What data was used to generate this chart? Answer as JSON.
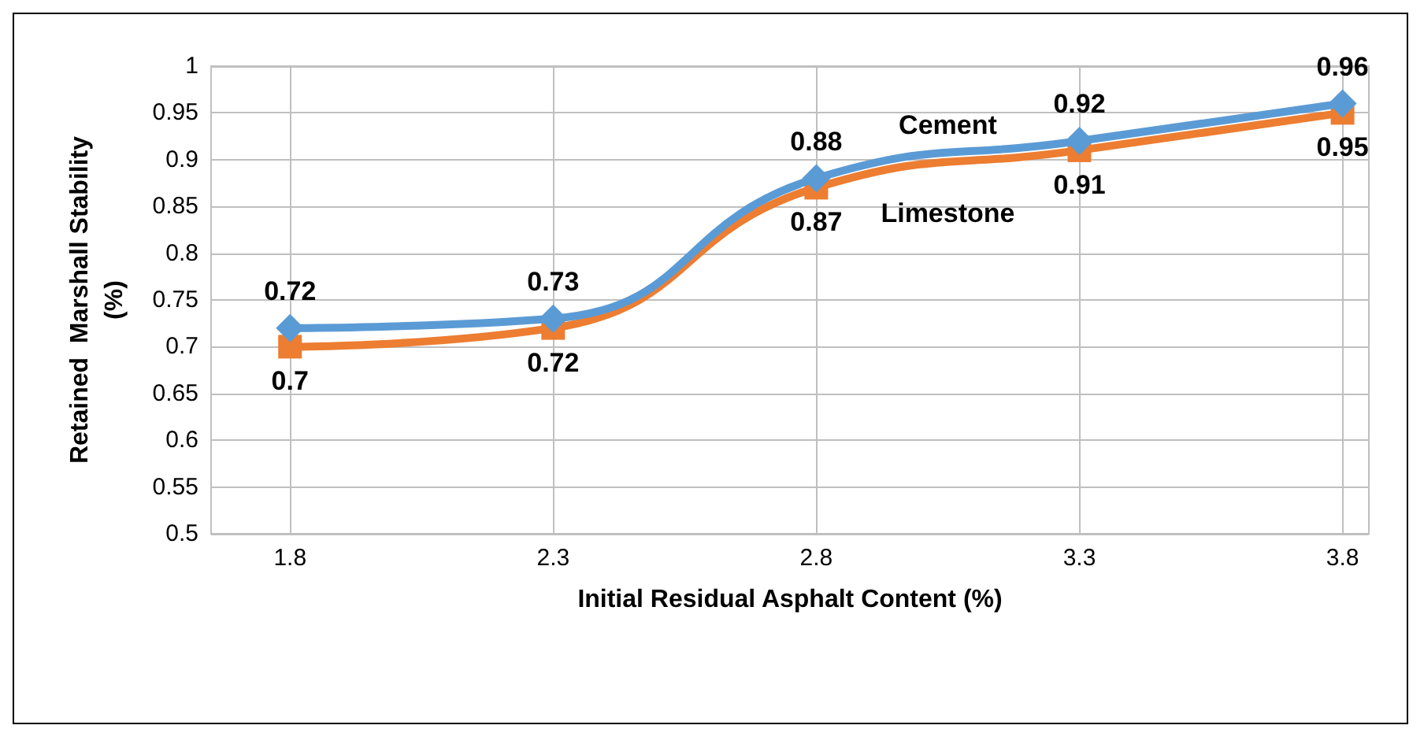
{
  "chart_data": {
    "type": "line",
    "xlabel": "Initial Residual Asphalt Content (%)",
    "ylabel": "Retained  Marshall Stability\n(%)",
    "x": [
      1.8,
      2.3,
      2.8,
      3.3,
      3.8
    ],
    "series": [
      {
        "name": "Cement",
        "color": "#5b9bd5",
        "values": [
          0.72,
          0.73,
          0.88,
          0.92,
          0.96
        ],
        "marker": "diamond"
      },
      {
        "name": "Limestone",
        "color": "#ed7d31",
        "values": [
          0.7,
          0.72,
          0.87,
          0.91,
          0.95
        ],
        "marker": "square"
      }
    ],
    "xlim": [
      1.65,
      3.85
    ],
    "xticks": [
      1.8,
      2.3,
      2.8,
      3.3,
      3.8
    ],
    "ylim": [
      0.5,
      1
    ],
    "yticks": [
      0.5,
      0.55,
      0.6,
      0.65,
      0.7,
      0.75,
      0.8,
      0.85,
      0.9,
      0.95,
      1
    ],
    "grid": true,
    "legend": false,
    "data_labels": true,
    "line_style": "solid"
  }
}
